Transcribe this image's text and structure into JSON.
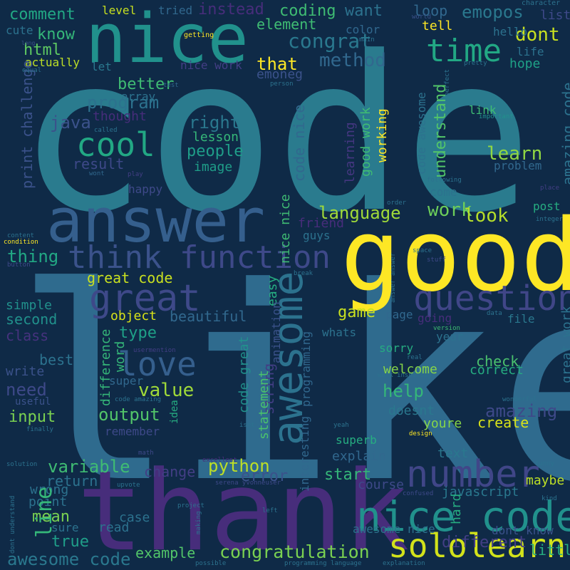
{
  "background": "#0f2a47",
  "words": [
    {
      "text": "code",
      "color": "#2a7b8e",
      "vertical": false
    },
    {
      "text": "like",
      "color": "#2f6b8e",
      "vertical": false
    },
    {
      "text": "good",
      "color": "#fde725",
      "vertical": false
    },
    {
      "text": "thank",
      "color": "#472d7b",
      "vertical": false
    },
    {
      "text": "nice",
      "color": "#21918c",
      "vertical": false
    },
    {
      "text": "answer",
      "color": "#355f8d",
      "vertical": false
    },
    {
      "text": "nice code",
      "color": "#21918c",
      "vertical": false
    },
    {
      "text": "number",
      "color": "#404688",
      "vertical": false
    },
    {
      "text": "sololearn",
      "color": "#d2e21b",
      "vertical": false
    },
    {
      "text": "think",
      "color": "#3b528b",
      "vertical": false
    },
    {
      "text": "function",
      "color": "#3e4989",
      "vertical": false
    },
    {
      "text": "great",
      "color": "#3e4989",
      "vertical": false
    },
    {
      "text": "question",
      "color": "#404688",
      "vertical": false
    },
    {
      "text": "time",
      "color": "#22a884",
      "vertical": false
    },
    {
      "text": "cool",
      "color": "#22a884",
      "vertical": false
    },
    {
      "text": "love",
      "color": "#355f8d",
      "vertical": false
    },
    {
      "text": "awesome",
      "color": "#2c728e",
      "vertical": true
    },
    {
      "text": "congratulation",
      "color": "#7ad151",
      "vertical": false
    },
    {
      "text": "awesome code",
      "color": "#2a788e",
      "vertical": false
    },
    {
      "text": "comment",
      "color": "#22a884",
      "vertical": false
    },
    {
      "text": "coding",
      "color": "#3fbc73",
      "vertical": false
    },
    {
      "text": "want",
      "color": "#2c728e",
      "vertical": false
    },
    {
      "text": "loop",
      "color": "#31688e",
      "vertical": false
    },
    {
      "text": "emopos",
      "color": "#2a788e",
      "vertical": false
    },
    {
      "text": "congrat",
      "color": "#2a788e",
      "vertical": false
    },
    {
      "text": "element",
      "color": "#3fbc73",
      "vertical": false
    },
    {
      "text": "know",
      "color": "#35b779",
      "vertical": false
    },
    {
      "text": "html",
      "color": "#5ec962",
      "vertical": false
    },
    {
      "text": "method",
      "color": "#31688e",
      "vertical": false
    },
    {
      "text": "that",
      "color": "#fde725",
      "vertical": false
    },
    {
      "text": "better",
      "color": "#3fbc73",
      "vertical": false
    },
    {
      "text": "program",
      "color": "#2c728e",
      "vertical": false
    },
    {
      "text": "java",
      "color": "#3b528b",
      "vertical": false
    },
    {
      "text": "right",
      "color": "#2a788e",
      "vertical": false
    },
    {
      "text": "lesson",
      "color": "#35b779",
      "vertical": false
    },
    {
      "text": "people",
      "color": "#1f9e89",
      "vertical": false
    },
    {
      "text": "image",
      "color": "#1f9e89",
      "vertical": false
    },
    {
      "text": "result",
      "color": "#3e4989",
      "vertical": false
    },
    {
      "text": "language",
      "color": "#a0da39",
      "vertical": false
    },
    {
      "text": "work",
      "color": "#6ccd5a",
      "vertical": false
    },
    {
      "text": "look",
      "color": "#b5de2b",
      "vertical": false
    },
    {
      "text": "learn",
      "color": "#90d743",
      "vertical": false
    },
    {
      "text": "dont",
      "color": "#c8e020",
      "vertical": false
    },
    {
      "text": "hope",
      "color": "#1fa187",
      "vertical": false
    },
    {
      "text": "actually",
      "color": "#bddf26",
      "vertical": false
    },
    {
      "text": "thing",
      "color": "#22a884",
      "vertical": false
    },
    {
      "text": "great code",
      "color": "#c8e020",
      "vertical": false
    },
    {
      "text": "object",
      "color": "#d8e219",
      "vertical": false
    },
    {
      "text": "type",
      "color": "#1fa187",
      "vertical": false
    },
    {
      "text": "beautiful",
      "color": "#31688e",
      "vertical": false
    },
    {
      "text": "game",
      "color": "#c8e020",
      "vertical": false
    },
    {
      "text": "value",
      "color": "#a0da39",
      "vertical": false
    },
    {
      "text": "output",
      "color": "#52c569",
      "vertical": false
    },
    {
      "text": "help",
      "color": "#35b779",
      "vertical": false
    },
    {
      "text": "welcome",
      "color": "#86d549",
      "vertical": false
    },
    {
      "text": "doesnt",
      "color": "#2a788e",
      "vertical": false
    },
    {
      "text": "youre",
      "color": "#86d549",
      "vertical": false
    },
    {
      "text": "create",
      "color": "#d8e219",
      "vertical": false
    },
    {
      "text": "amazing",
      "color": "#3e4989",
      "vertical": false
    },
    {
      "text": "check",
      "color": "#4ac16d",
      "vertical": false
    },
    {
      "text": "correct",
      "color": "#26ad81",
      "vertical": false
    },
    {
      "text": "python",
      "color": "#bddf26",
      "vertical": false
    },
    {
      "text": "error",
      "color": "#3b528b",
      "vertical": false
    },
    {
      "text": "start",
      "color": "#35b779",
      "vertical": false
    },
    {
      "text": "variable",
      "color": "#3fbc73",
      "vertical": false
    },
    {
      "text": "change",
      "color": "#433e85",
      "vertical": false
    },
    {
      "text": "return",
      "color": "#2c728e",
      "vertical": false
    },
    {
      "text": "wrong",
      "color": "#2c728e",
      "vertical": false
    },
    {
      "text": "point",
      "color": "#2c728e",
      "vertical": false
    },
    {
      "text": "mean",
      "color": "#7ad151",
      "vertical": false
    },
    {
      "text": "true",
      "color": "#1f9e89",
      "vertical": false
    },
    {
      "text": "line",
      "color": "#35b779",
      "vertical": true
    },
    {
      "text": "input",
      "color": "#7ad151",
      "vertical": false
    },
    {
      "text": "need",
      "color": "#3e4989",
      "vertical": false
    },
    {
      "text": "best",
      "color": "#2c728e",
      "vertical": false
    },
    {
      "text": "write",
      "color": "#3b528b",
      "vertical": false
    },
    {
      "text": "simple",
      "color": "#21918c",
      "vertical": false
    },
    {
      "text": "second",
      "color": "#21918c",
      "vertical": false
    },
    {
      "text": "class",
      "color": "#46327e",
      "vertical": false
    },
    {
      "text": "example",
      "color": "#52c569",
      "vertical": false
    },
    {
      "text": "explain",
      "color": "#31688e",
      "vertical": false
    },
    {
      "text": "text",
      "color": "#2a788e",
      "vertical": false
    },
    {
      "text": "maybe",
      "color": "#bddf26",
      "vertical": false
    },
    {
      "text": "javascript",
      "color": "#2a788e",
      "vertical": false
    },
    {
      "text": "course",
      "color": "#3e4989",
      "vertical": false
    },
    {
      "text": "case",
      "color": "#2c728e",
      "vertical": false
    },
    {
      "text": "read",
      "color": "#2c728e",
      "vertical": false
    },
    {
      "text": "sure",
      "color": "#2c728e",
      "vertical": false
    },
    {
      "text": "awesome nice",
      "color": "#2c728e",
      "vertical": false
    },
    {
      "text": "dont know",
      "color": "#3b528b",
      "vertical": false
    },
    {
      "text": "different",
      "color": "#433e85",
      "vertical": false
    },
    {
      "text": "little",
      "color": "#26ad81",
      "vertical": false
    },
    {
      "text": "hard",
      "color": "#26ad81",
      "vertical": true
    },
    {
      "text": "print challenge",
      "color": "#3b528b",
      "vertical": true
    },
    {
      "text": "code nice",
      "color": "#31688e",
      "vertical": true
    },
    {
      "text": "good work",
      "color": "#3fbc73",
      "vertical": true
    },
    {
      "text": "understand",
      "color": "#52c569",
      "vertical": true
    },
    {
      "text": "code awesome",
      "color": "#2c728e",
      "vertical": true
    },
    {
      "text": "amazing code",
      "color": "#2c728e",
      "vertical": true
    },
    {
      "text": "great work",
      "color": "#2c728e",
      "vertical": true
    },
    {
      "text": "word",
      "color": "#35b779",
      "vertical": true
    },
    {
      "text": "difference",
      "color": "#35b779",
      "vertical": true
    },
    {
      "text": "easy",
      "color": "#26ad81",
      "vertical": true
    },
    {
      "text": "string",
      "color": "#433e85",
      "vertical": true
    },
    {
      "text": "code great",
      "color": "#21918c",
      "vertical": true
    },
    {
      "text": "statement",
      "color": "#4ac16d",
      "vertical": true
    },
    {
      "text": "nice nice",
      "color": "#3fbc73",
      "vertical": true
    },
    {
      "text": "working",
      "color": "#fde725",
      "vertical": true
    },
    {
      "text": "learning",
      "color": "#453781",
      "vertical": true
    },
    {
      "text": "interesting",
      "color": "#31688e",
      "vertical": true
    },
    {
      "text": "animation",
      "color": "#3b528b",
      "vertical": true
    },
    {
      "text": "programming",
      "color": "#31688e",
      "vertical": true
    },
    {
      "text": "level",
      "color": "#c8e020",
      "vertical": false
    },
    {
      "text": "tried",
      "color": "#31688e",
      "vertical": false
    },
    {
      "text": "instead",
      "color": "#472d7b",
      "vertical": false
    },
    {
      "text": "cute",
      "color": "#2c728e",
      "vertical": false
    },
    {
      "text": "color",
      "color": "#31688e",
      "vertical": false
    },
    {
      "text": "tell",
      "color": "#fde725",
      "vertical": false
    },
    {
      "text": "list",
      "color": "#3e4989",
      "vertical": false
    },
    {
      "text": "hello",
      "color": "#2c728e",
      "vertical": false
    },
    {
      "text": "life",
      "color": "#2c728e",
      "vertical": false
    },
    {
      "text": "emoneg",
      "color": "#3b528b",
      "vertical": false
    },
    {
      "text": "nice work",
      "color": "#433e85",
      "vertical": false
    },
    {
      "text": "let",
      "color": "#2a788e",
      "vertical": false
    },
    {
      "text": "array",
      "color": "#2c728e",
      "vertical": false
    },
    {
      "text": "thought",
      "color": "#472d7b",
      "vertical": false
    },
    {
      "text": "link",
      "color": "#3fbc73",
      "vertical": false
    },
    {
      "text": "problem",
      "color": "#31688e",
      "vertical": false
    },
    {
      "text": "happy",
      "color": "#3e4989",
      "vertical": false
    },
    {
      "text": "friend",
      "color": "#472d7b",
      "vertical": false
    },
    {
      "text": "guys",
      "color": "#2c728e",
      "vertical": false
    },
    {
      "text": "come",
      "color": "#2c728e",
      "vertical": false
    },
    {
      "text": "post",
      "color": "#26ad81",
      "vertical": false
    },
    {
      "text": "whats",
      "color": "#2c728e",
      "vertical": false
    },
    {
      "text": "file",
      "color": "#2a788e",
      "vertical": false
    },
    {
      "text": "year",
      "color": "#2c728e",
      "vertical": false
    },
    {
      "text": "sorry",
      "color": "#26ad81",
      "vertical": false
    },
    {
      "text": "page",
      "color": "#31688e",
      "vertical": false
    },
    {
      "text": "going",
      "color": "#472d7b",
      "vertical": false
    },
    {
      "text": "super",
      "color": "#31688e",
      "vertical": false
    },
    {
      "text": "remember",
      "color": "#3e4989",
      "vertical": false
    },
    {
      "text": "useful",
      "color": "#3b528b",
      "vertical": false
    },
    {
      "text": "superb",
      "color": "#26ad81",
      "vertical": false
    },
    {
      "text": "idea",
      "color": "#26ad81",
      "vertical": true
    },
    {
      "text": "getting",
      "color": "#fde725",
      "vertical": false
    },
    {
      "text": "world",
      "color": "#3b528b",
      "vertical": false
    },
    {
      "text": "character",
      "color": "#2c728e",
      "vertical": false
    },
    {
      "text": "long",
      "color": "#3b528b",
      "vertical": false
    },
    {
      "text": "equal",
      "color": "#2c728e",
      "vertical": false
    },
    {
      "text": "test",
      "color": "#31688e",
      "vertical": false
    },
    {
      "text": "person",
      "color": "#2c728e",
      "vertical": false
    },
    {
      "text": "important",
      "color": "#21918c",
      "vertical": false
    },
    {
      "text": "called",
      "color": "#2c728e",
      "vertical": false
    },
    {
      "text": "wont",
      "color": "#31688e",
      "vertical": false
    },
    {
      "text": "play",
      "color": "#433e85",
      "vertical": false
    },
    {
      "text": "following",
      "color": "#2c728e",
      "vertical": false
    },
    {
      "text": "place",
      "color": "#433e85",
      "vertical": false
    },
    {
      "text": "order",
      "color": "#2c728e",
      "vertical": false
    },
    {
      "text": "integer",
      "color": "#2c728e",
      "vertical": false
    },
    {
      "text": "content",
      "color": "#2c728e",
      "vertical": false
    },
    {
      "text": "condition",
      "color": "#fde725",
      "vertical": false
    },
    {
      "text": "button",
      "color": "#3e4989",
      "vertical": false
    },
    {
      "text": "stuff",
      "color": "#3e4989",
      "vertical": false
    },
    {
      "text": "space",
      "color": "#2c728e",
      "vertical": false
    },
    {
      "text": "data",
      "color": "#2c728e",
      "vertical": false
    },
    {
      "text": "version",
      "color": "#3fbc73",
      "vertical": false
    },
    {
      "text": "usermention",
      "color": "#433e85",
      "vertical": false
    },
    {
      "text": "real",
      "color": "#2c728e",
      "vertical": false
    },
    {
      "text": "work inspiring",
      "color": "#2c728e",
      "vertical": false
    },
    {
      "text": "code amazing",
      "color": "#2c728e",
      "vertical": false
    },
    {
      "text": "isnt",
      "color": "#2c728e",
      "vertical": false
    },
    {
      "text": "yeah",
      "color": "#2c728e",
      "vertical": false
    },
    {
      "text": "finally",
      "color": "#2c728e",
      "vertical": false
    },
    {
      "text": "design",
      "color": "#fde725",
      "vertical": false
    },
    {
      "text": "wonderful",
      "color": "#2c728e",
      "vertical": false
    },
    {
      "text": "funny",
      "color": "#2c728e",
      "vertical": false
    },
    {
      "text": "math",
      "color": "#3e4989",
      "vertical": false
    },
    {
      "text": "excellent",
      "color": "#472d7b",
      "vertical": false
    },
    {
      "text": "solution",
      "color": "#2c728e",
      "vertical": false
    },
    {
      "text": "upvote",
      "color": "#2c728e",
      "vertical": false
    },
    {
      "text": "serena yvonneuser",
      "color": "#3e4989",
      "vertical": false
    },
    {
      "text": "confused",
      "color": "#3e4989",
      "vertical": false
    },
    {
      "text": "kind",
      "color": "#2c728e",
      "vertical": false
    },
    {
      "text": "project",
      "color": "#2c728e",
      "vertical": false
    },
    {
      "text": "left",
      "color": "#2c728e",
      "vertical": false
    },
    {
      "text": "possible",
      "color": "#2c728e",
      "vertical": false
    },
    {
      "text": "programming language",
      "color": "#2c728e",
      "vertical": false
    },
    {
      "text": "explanation",
      "color": "#2c728e",
      "vertical": false
    },
    {
      "text": "dont understand",
      "color": "#2c728e",
      "vertical": true
    },
    {
      "text": "making",
      "color": "#2c728e",
      "vertical": true
    },
    {
      "text": "answer answer",
      "color": "#2c728e",
      "vertical": true
    },
    {
      "text": "break",
      "color": "#2c728e",
      "vertical": false
    },
    {
      "text": "main",
      "color": "#2c728e",
      "vertical": false
    },
    {
      "text": "pretty",
      "color": "#2c728e",
      "vertical": false
    },
    {
      "text": "perfect",
      "color": "#2c728e",
      "vertical": true
    }
  ]
}
